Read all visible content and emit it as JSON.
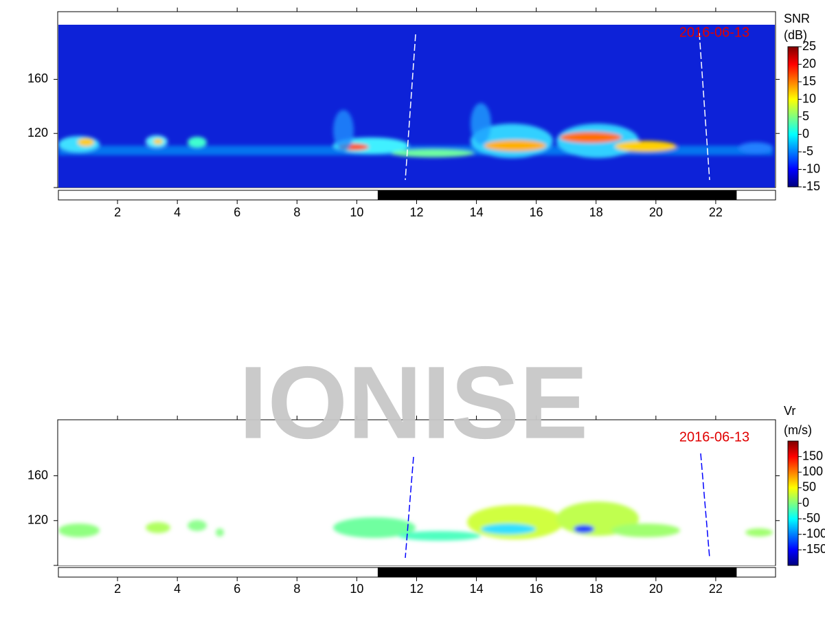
{
  "watermark": "IONISE",
  "chart_data": [
    {
      "type": "heatmap",
      "date": "2016-06-13",
      "colorbar_label": [
        "SNR",
        "(dB)"
      ],
      "xlim": [
        0,
        24
      ],
      "xticks": [
        2,
        4,
        6,
        8,
        10,
        12,
        14,
        16,
        18,
        20,
        22
      ],
      "ylim": [
        80,
        210
      ],
      "yticks": [
        120,
        160
      ],
      "clim": [
        -15,
        25
      ],
      "cticks": [
        -15,
        -10,
        -5,
        0,
        5,
        10,
        15,
        20,
        25
      ],
      "night": [
        10.7,
        22.7
      ],
      "background": "#0d22d8",
      "terminator_color": "#ffffff"
    },
    {
      "type": "heatmap",
      "date": "2016-06-13",
      "colorbar_label": [
        "Vr",
        "(m/s)"
      ],
      "xlim": [
        0,
        24
      ],
      "xticks": [
        2,
        4,
        6,
        8,
        10,
        12,
        14,
        16,
        18,
        20,
        22
      ],
      "ylim": [
        80,
        210
      ],
      "yticks": [
        120,
        160
      ],
      "clim": [
        -200,
        200
      ],
      "cticks": [
        -150,
        -100,
        -50,
        0,
        50,
        100,
        150
      ],
      "night": [
        10.7,
        22.7
      ],
      "background": "#ffffff",
      "terminator_color": "#0000ff"
    }
  ]
}
